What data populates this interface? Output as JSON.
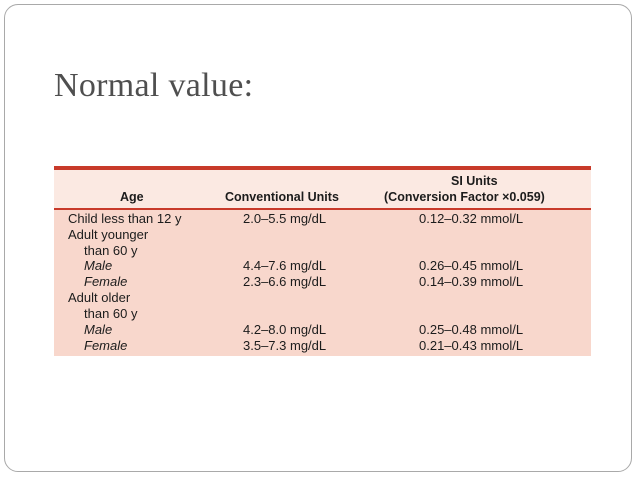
{
  "slide": {
    "title": "Normal value:"
  },
  "table": {
    "headers": {
      "age": "Age",
      "conventional": "Conventional Units",
      "si_line1": "SI Units",
      "si_line2": "(Conversion Factor ×0.059)"
    },
    "rows": [
      {
        "age": "Child less than 12 y",
        "conventional": "2.0–5.5 mg/dL",
        "si": "0.12–0.32 mmol/L"
      },
      {
        "age": "Adult younger",
        "conventional": "",
        "si": ""
      },
      {
        "age": "than 60 y",
        "conventional": "",
        "si": ""
      },
      {
        "age": "Male",
        "conventional": "4.4–7.6 mg/dL",
        "si": "0.26–0.45 mmol/L"
      },
      {
        "age": "Female",
        "conventional": "2.3–6.6 mg/dL",
        "si": "0.14–0.39 mmol/L"
      },
      {
        "age": "Adult older",
        "conventional": "",
        "si": ""
      },
      {
        "age": "than 60 y",
        "conventional": "",
        "si": ""
      },
      {
        "age": "Male",
        "conventional": "4.2–8.0 mg/dL",
        "si": "0.25–0.48 mmol/L"
      },
      {
        "age": "Female",
        "conventional": "3.5–7.3 mg/dL",
        "si": "0.21–0.43 mmol/L"
      }
    ]
  },
  "colors": {
    "accent_rule": "#c83a2a",
    "table_background": "#f8d7cc"
  }
}
